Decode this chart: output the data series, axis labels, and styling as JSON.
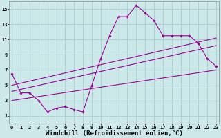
{
  "xlabel": "Windchill (Refroidissement éolien,°C)",
  "background_color": "#cce8e8",
  "grid_color": "#aacccc",
  "line_color": "#990099",
  "x_main": [
    0,
    1,
    2,
    3,
    4,
    5,
    6,
    7,
    8,
    9,
    10,
    11,
    12,
    13,
    14,
    15,
    16,
    17,
    18,
    19,
    20,
    21,
    22,
    23
  ],
  "y_main": [
    6.5,
    4.0,
    4.0,
    3.0,
    1.5,
    2.0,
    2.2,
    1.8,
    1.5,
    5.0,
    8.5,
    11.5,
    14.0,
    14.0,
    15.5,
    14.5,
    13.5,
    11.5,
    11.5,
    11.5,
    11.5,
    10.5,
    8.5,
    7.5
  ],
  "trend1_x": [
    0,
    23
  ],
  "trend1_y": [
    4.2,
    10.2
  ],
  "trend2_x": [
    0,
    23
  ],
  "trend2_y": [
    5.0,
    11.2
  ],
  "trend3_x": [
    0,
    23
  ],
  "trend3_y": [
    3.0,
    7.0
  ],
  "xlim": [
    -0.3,
    23.3
  ],
  "ylim": [
    0,
    16
  ],
  "xticks": [
    0,
    1,
    2,
    3,
    4,
    5,
    6,
    7,
    8,
    9,
    10,
    11,
    12,
    13,
    14,
    15,
    16,
    17,
    18,
    19,
    20,
    21,
    22,
    23
  ],
  "yticks": [
    1,
    3,
    5,
    7,
    9,
    11,
    13,
    15
  ],
  "tick_fontsize": 5.0,
  "xlabel_fontsize": 6.5
}
